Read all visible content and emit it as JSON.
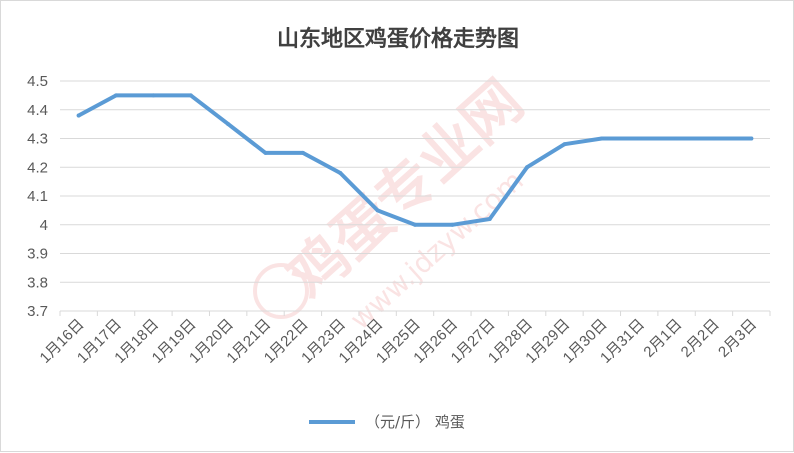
{
  "chart_data": {
    "type": "line",
    "title": "山东地区鸡蛋价格走势图",
    "xlabel": "",
    "ylabel": "",
    "categories": [
      "1月16日",
      "1月17日",
      "1月18日",
      "1月19日",
      "1月20日",
      "1月21日",
      "1月22日",
      "1月23日",
      "1月24日",
      "1月25日",
      "1月26日",
      "1月27日",
      "1月28日",
      "1月29日",
      "1月30日",
      "1月31日",
      "2月1日",
      "2月2日",
      "2月3日"
    ],
    "series": [
      {
        "name": "（元/斤） 鸡蛋",
        "color": "#5b9bd5",
        "values": [
          4.38,
          4.45,
          4.45,
          4.45,
          4.35,
          4.25,
          4.25,
          4.18,
          4.05,
          4.0,
          4.0,
          4.02,
          4.2,
          4.28,
          4.3,
          4.3,
          4.3,
          4.3,
          4.3
        ]
      }
    ],
    "ylim": [
      3.7,
      4.5
    ],
    "yticks": [
      "4.5",
      "4.4",
      "4.3",
      "4.2",
      "4.1",
      "4",
      "3.9",
      "3.8",
      "3.7"
    ],
    "grid": true,
    "legend_position": "bottom"
  }
}
